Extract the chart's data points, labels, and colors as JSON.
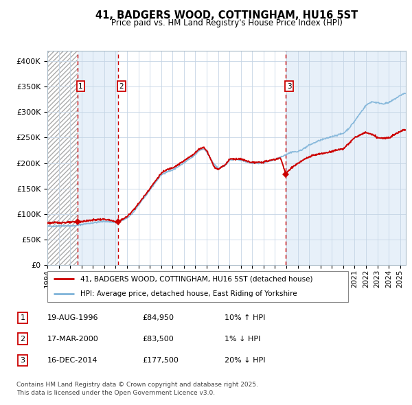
{
  "title": "41, BADGERS WOOD, COTTINGHAM, HU16 5ST",
  "subtitle": "Price paid vs. HM Land Registry's House Price Index (HPI)",
  "legend_line1": "41, BADGERS WOOD, COTTINGHAM, HU16 5ST (detached house)",
  "legend_line2": "HPI: Average price, detached house, East Riding of Yorkshire",
  "footer_line1": "Contains HM Land Registry data © Crown copyright and database right 2025.",
  "footer_line2": "This data is licensed under the Open Government Licence v3.0.",
  "transactions": [
    {
      "num": 1,
      "date": "19-AUG-1996",
      "date_dec": 1996.63,
      "price": 84950,
      "price_str": "£84,950",
      "pct": "10%",
      "dir": "↑"
    },
    {
      "num": 2,
      "date": "17-MAR-2000",
      "date_dec": 2000.21,
      "price": 83500,
      "price_str": "£83,500",
      "pct": "1%",
      "dir": "↓"
    },
    {
      "num": 3,
      "date": "16-DEC-2014",
      "date_dec": 2014.96,
      "price": 177500,
      "price_str": "£177,500",
      "pct": "20%",
      "dir": "↓"
    }
  ],
  "hpi_color": "#7eb3d8",
  "price_color": "#cc0000",
  "vline_color": "#cc0000",
  "bg_shade_color": "#ddeaf7",
  "ylim": [
    0,
    420000
  ],
  "yticks": [
    0,
    50000,
    100000,
    150000,
    200000,
    250000,
    300000,
    350000,
    400000
  ],
  "xlim_start": 1994.0,
  "xlim_end": 2025.5,
  "xtick_years": [
    1994,
    1995,
    1996,
    1997,
    1998,
    1999,
    2000,
    2001,
    2002,
    2003,
    2004,
    2005,
    2006,
    2007,
    2008,
    2009,
    2010,
    2011,
    2012,
    2013,
    2014,
    2015,
    2016,
    2017,
    2018,
    2019,
    2020,
    2021,
    2022,
    2023,
    2024,
    2025
  ]
}
